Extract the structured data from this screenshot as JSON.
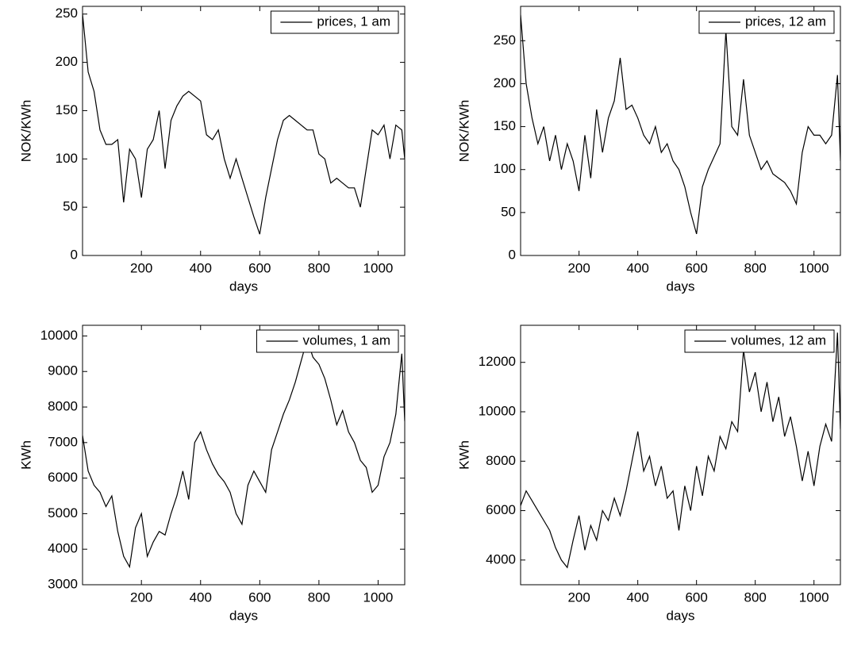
{
  "chart_data": [
    {
      "type": "line",
      "xlabel": "days",
      "ylabel": "NOK/KWh",
      "legend": "upper right",
      "xlim": [
        1,
        1090
      ],
      "ylim": [
        0,
        258
      ],
      "xticks": [
        200,
        400,
        600,
        800,
        1000
      ],
      "yticks": [
        0,
        50,
        100,
        150,
        200,
        250
      ],
      "x": [
        1,
        20,
        40,
        60,
        80,
        100,
        120,
        140,
        160,
        180,
        200,
        220,
        240,
        260,
        280,
        300,
        320,
        340,
        360,
        380,
        400,
        420,
        440,
        460,
        480,
        500,
        520,
        540,
        560,
        580,
        600,
        620,
        640,
        660,
        680,
        700,
        720,
        740,
        760,
        780,
        800,
        820,
        840,
        860,
        880,
        900,
        920,
        940,
        960,
        980,
        1000,
        1020,
        1040,
        1060,
        1080,
        1090
      ],
      "series": [
        {
          "name": "prices, 1 am",
          "color": "#000000",
          "values": [
            250,
            190,
            170,
            130,
            115,
            115,
            120,
            55,
            110,
            100,
            60,
            110,
            120,
            150,
            90,
            140,
            155,
            165,
            170,
            165,
            160,
            125,
            120,
            130,
            100,
            80,
            100,
            80,
            60,
            40,
            22,
            60,
            90,
            120,
            140,
            145,
            140,
            135,
            130,
            130,
            105,
            100,
            75,
            80,
            75,
            70,
            70,
            50,
            90,
            130,
            125,
            135,
            100,
            135,
            130,
            100
          ]
        }
      ]
    },
    {
      "type": "line",
      "xlabel": "days",
      "ylabel": "NOK/KWh",
      "legend": "upper right",
      "xlim": [
        1,
        1090
      ],
      "ylim": [
        0,
        290
      ],
      "xticks": [
        200,
        400,
        600,
        800,
        1000
      ],
      "yticks": [
        0,
        50,
        100,
        150,
        200,
        250
      ],
      "x": [
        1,
        20,
        40,
        60,
        80,
        100,
        120,
        140,
        160,
        180,
        200,
        220,
        240,
        260,
        280,
        300,
        320,
        340,
        360,
        380,
        400,
        420,
        440,
        460,
        480,
        500,
        520,
        540,
        560,
        580,
        600,
        620,
        640,
        660,
        680,
        700,
        720,
        740,
        760,
        780,
        800,
        820,
        840,
        860,
        880,
        900,
        920,
        940,
        960,
        980,
        1000,
        1020,
        1040,
        1060,
        1080,
        1090
      ],
      "series": [
        {
          "name": "prices, 12 am",
          "color": "#000000",
          "values": [
            280,
            200,
            160,
            130,
            150,
            110,
            140,
            100,
            130,
            110,
            75,
            140,
            90,
            170,
            120,
            160,
            180,
            230,
            170,
            175,
            160,
            140,
            130,
            150,
            120,
            130,
            110,
            100,
            80,
            50,
            25,
            80,
            100,
            115,
            130,
            262,
            150,
            140,
            205,
            140,
            120,
            100,
            110,
            95,
            90,
            85,
            75,
            60,
            120,
            150,
            140,
            140,
            130,
            140,
            210,
            110
          ]
        }
      ]
    },
    {
      "type": "line",
      "xlabel": "days",
      "ylabel": "KWh",
      "legend": "upper right",
      "xlim": [
        1,
        1090
      ],
      "ylim": [
        3000,
        10300
      ],
      "xticks": [
        200,
        400,
        600,
        800,
        1000
      ],
      "yticks": [
        3000,
        4000,
        5000,
        6000,
        7000,
        8000,
        9000,
        10000
      ],
      "x": [
        1,
        20,
        40,
        60,
        80,
        100,
        120,
        140,
        160,
        180,
        200,
        220,
        240,
        260,
        280,
        300,
        320,
        340,
        360,
        380,
        400,
        420,
        440,
        460,
        480,
        500,
        520,
        540,
        560,
        580,
        600,
        620,
        640,
        660,
        680,
        700,
        720,
        740,
        760,
        780,
        800,
        820,
        840,
        860,
        880,
        900,
        920,
        940,
        960,
        980,
        1000,
        1020,
        1040,
        1060,
        1080,
        1090
      ],
      "series": [
        {
          "name": "volumes, 1 am",
          "color": "#000000",
          "values": [
            7200,
            6200,
            5800,
            5600,
            5200,
            5500,
            4500,
            3800,
            3500,
            4600,
            5000,
            3800,
            4200,
            4500,
            4400,
            5000,
            5500,
            6200,
            5400,
            7000,
            7300,
            6800,
            6400,
            6100,
            5900,
            5600,
            5000,
            4700,
            5800,
            6200,
            5900,
            5600,
            6800,
            7300,
            7800,
            8200,
            8700,
            9300,
            9900,
            9400,
            9200,
            8800,
            8200,
            7500,
            7900,
            7300,
            7000,
            6500,
            6300,
            5600,
            5800,
            6600,
            7000,
            7800,
            9500,
            7600
          ]
        }
      ]
    },
    {
      "type": "line",
      "xlabel": "days",
      "ylabel": "KWh",
      "legend": "upper right",
      "xlim": [
        1,
        1090
      ],
      "ylim": [
        3000,
        13500
      ],
      "xticks": [
        200,
        400,
        600,
        800,
        1000
      ],
      "yticks": [
        4000,
        6000,
        8000,
        10000,
        12000
      ],
      "x": [
        1,
        20,
        40,
        60,
        80,
        100,
        120,
        140,
        160,
        180,
        200,
        220,
        240,
        260,
        280,
        300,
        320,
        340,
        360,
        380,
        400,
        420,
        440,
        460,
        480,
        500,
        520,
        540,
        560,
        580,
        600,
        620,
        640,
        660,
        680,
        700,
        720,
        740,
        760,
        780,
        800,
        820,
        840,
        860,
        880,
        900,
        920,
        940,
        960,
        980,
        1000,
        1020,
        1040,
        1060,
        1080,
        1090
      ],
      "series": [
        {
          "name": "volumes, 12 am",
          "color": "#000000",
          "values": [
            6200,
            6800,
            6400,
            6000,
            5600,
            5200,
            4500,
            4000,
            3700,
            4800,
            5800,
            4400,
            5400,
            4800,
            6000,
            5600,
            6500,
            5800,
            6800,
            8000,
            9200,
            7600,
            8200,
            7000,
            7800,
            6500,
            6800,
            5200,
            7000,
            6000,
            7800,
            6600,
            8200,
            7600,
            9000,
            8500,
            9600,
            9200,
            12500,
            10800,
            11600,
            10000,
            11200,
            9600,
            10600,
            9000,
            9800,
            8600,
            7200,
            8400,
            7000,
            8600,
            9500,
            8800,
            13200,
            9300
          ]
        }
      ]
    }
  ]
}
